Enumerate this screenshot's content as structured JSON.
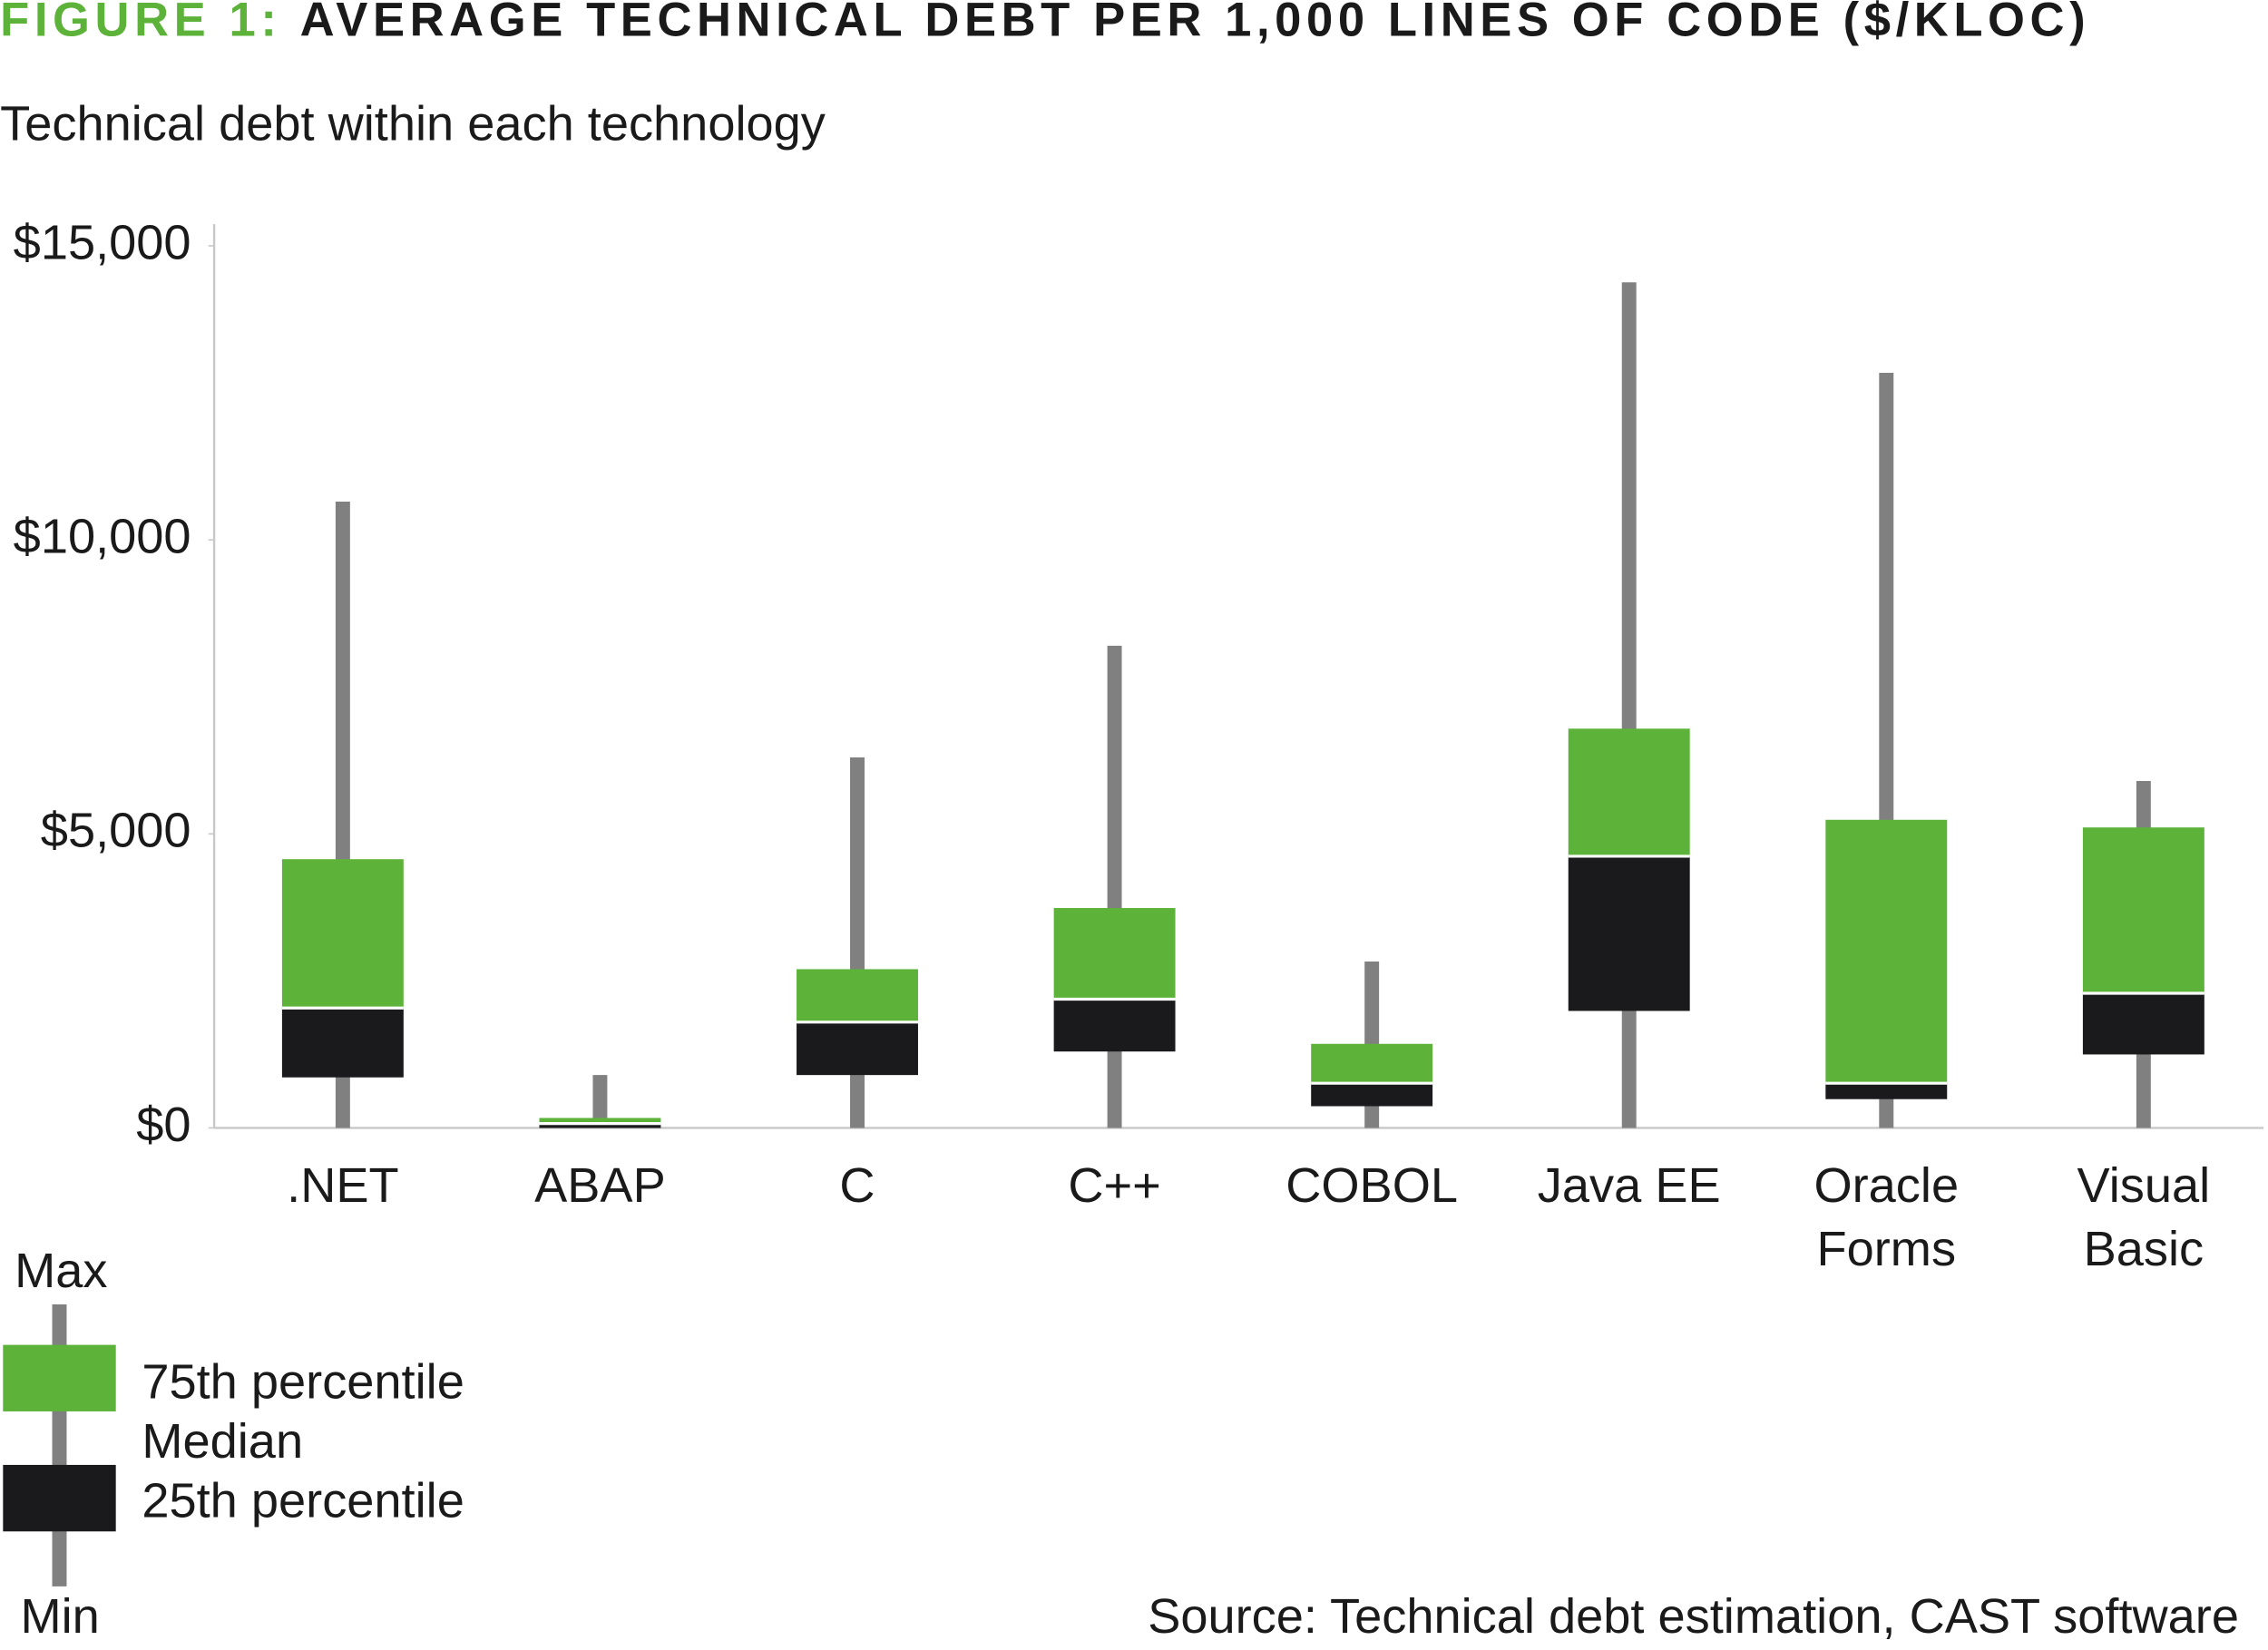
{
  "chart_data": {
    "type": "box",
    "title": {
      "prefix": "FIGURE 1:",
      "text": "AVERAGE TECHNICAL DEBT PER 1,000 LINES OF CODE ($/KLOC)"
    },
    "subtitle": "Technical debt within each technology",
    "source": "Source: Technical debt estimation, CAST software",
    "categories": [
      [
        ".NET"
      ],
      [
        "ABAP"
      ],
      [
        "C"
      ],
      [
        "C++"
      ],
      [
        "COBOL"
      ],
      [
        "Java EE"
      ],
      [
        "Oracle",
        "Forms"
      ],
      [
        "Visual",
        "Basic"
      ]
    ],
    "min": [
      0,
      0,
      0,
      0,
      0,
      0,
      0,
      0
    ],
    "q1": [
      860,
      0,
      900,
      1300,
      370,
      1990,
      490,
      1250
    ],
    "median": [
      2040,
      75,
      1800,
      2190,
      760,
      4620,
      760,
      2290
    ],
    "q3": [
      4570,
      170,
      2700,
      3740,
      1430,
      6790,
      5240,
      5110
    ],
    "max": [
      10650,
      900,
      6300,
      8200,
      2830,
      14380,
      12840,
      5900
    ],
    "colors": {
      "whisker": "#808080",
      "upper": "#5db33a",
      "lower": "#1a1a1c"
    },
    "ylim": [
      0,
      15000
    ],
    "yticks": [
      {
        "value": 0,
        "label": "$0"
      },
      {
        "value": 5000,
        "label": "$5,000"
      },
      {
        "value": 10000,
        "label": "$10,000"
      },
      {
        "value": 15000,
        "label": "$15,000"
      }
    ],
    "legend": {
      "max": "Max",
      "upper": "75th percentile",
      "median": "Median",
      "lower": "25th percentile",
      "min": "Min"
    }
  }
}
